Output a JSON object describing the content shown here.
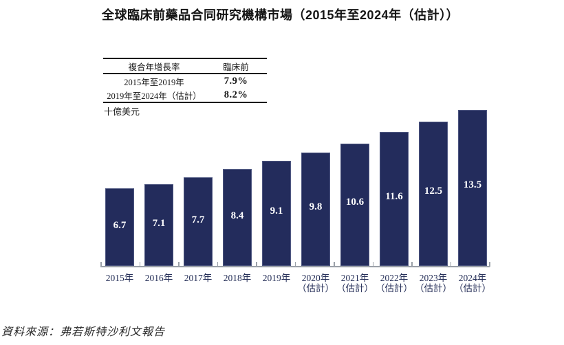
{
  "chart_data": {
    "type": "bar",
    "title": "全球臨床前藥品合同研究機構市場（2015年至2024年（估計））",
    "categories": [
      "2015年",
      "2016年",
      "2017年",
      "2018年",
      "2019年",
      "2020年\n（估計）",
      "2021年\n（估計）",
      "2022年\n（估計）",
      "2023年\n（估計）",
      "2024年\n（估計）"
    ],
    "values": [
      6.7,
      7.1,
      7.7,
      8.4,
      9.1,
      9.8,
      10.6,
      11.6,
      12.5,
      13.5
    ],
    "ylabel": "十億美元",
    "ylim": [
      0,
      14
    ],
    "grid": false,
    "legend": "none",
    "cagr_table": {
      "headers": [
        "複合年增長率",
        "臨床前"
      ],
      "rows": [
        [
          "2015年至2019年",
          "7.9%"
        ],
        [
          "2019年至2024年（估計）",
          "8.2%"
        ]
      ]
    },
    "colors": {
      "bar": "#232c5c",
      "bar_edge": "#4e5781",
      "value_label": "#ffffff",
      "axis": "#9aa0a8",
      "label": "#242e57"
    }
  },
  "source": "資料來源：弗若斯特沙利文報告"
}
